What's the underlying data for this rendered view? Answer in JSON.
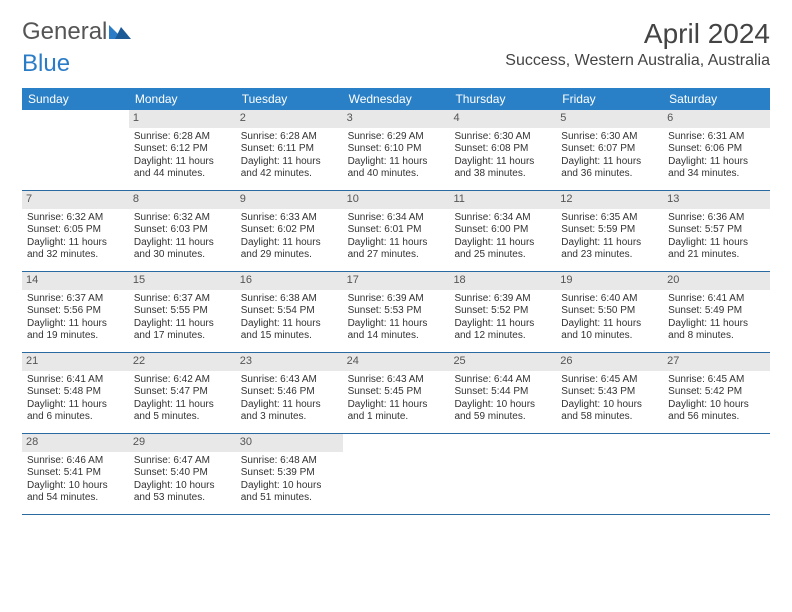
{
  "logo": {
    "text1": "General",
    "text2": "Blue"
  },
  "title": "April 2024",
  "location": "Success, Western Australia, Australia",
  "colors": {
    "header_bg": "#2a80c7",
    "header_text": "#ffffff",
    "daynum_bg": "#e8e8e8",
    "week_border": "#2a6aa0",
    "logo_blue": "#2a7cc7"
  },
  "daysOfWeek": [
    "Sunday",
    "Monday",
    "Tuesday",
    "Wednesday",
    "Thursday",
    "Friday",
    "Saturday"
  ],
  "weeks": [
    [
      {
        "num": "",
        "blank": true
      },
      {
        "num": "1",
        "sunrise": "Sunrise: 6:28 AM",
        "sunset": "Sunset: 6:12 PM",
        "day1": "Daylight: 11 hours",
        "day2": "and 44 minutes."
      },
      {
        "num": "2",
        "sunrise": "Sunrise: 6:28 AM",
        "sunset": "Sunset: 6:11 PM",
        "day1": "Daylight: 11 hours",
        "day2": "and 42 minutes."
      },
      {
        "num": "3",
        "sunrise": "Sunrise: 6:29 AM",
        "sunset": "Sunset: 6:10 PM",
        "day1": "Daylight: 11 hours",
        "day2": "and 40 minutes."
      },
      {
        "num": "4",
        "sunrise": "Sunrise: 6:30 AM",
        "sunset": "Sunset: 6:08 PM",
        "day1": "Daylight: 11 hours",
        "day2": "and 38 minutes."
      },
      {
        "num": "5",
        "sunrise": "Sunrise: 6:30 AM",
        "sunset": "Sunset: 6:07 PM",
        "day1": "Daylight: 11 hours",
        "day2": "and 36 minutes."
      },
      {
        "num": "6",
        "sunrise": "Sunrise: 6:31 AM",
        "sunset": "Sunset: 6:06 PM",
        "day1": "Daylight: 11 hours",
        "day2": "and 34 minutes."
      }
    ],
    [
      {
        "num": "7",
        "sunrise": "Sunrise: 6:32 AM",
        "sunset": "Sunset: 6:05 PM",
        "day1": "Daylight: 11 hours",
        "day2": "and 32 minutes."
      },
      {
        "num": "8",
        "sunrise": "Sunrise: 6:32 AM",
        "sunset": "Sunset: 6:03 PM",
        "day1": "Daylight: 11 hours",
        "day2": "and 30 minutes."
      },
      {
        "num": "9",
        "sunrise": "Sunrise: 6:33 AM",
        "sunset": "Sunset: 6:02 PM",
        "day1": "Daylight: 11 hours",
        "day2": "and 29 minutes."
      },
      {
        "num": "10",
        "sunrise": "Sunrise: 6:34 AM",
        "sunset": "Sunset: 6:01 PM",
        "day1": "Daylight: 11 hours",
        "day2": "and 27 minutes."
      },
      {
        "num": "11",
        "sunrise": "Sunrise: 6:34 AM",
        "sunset": "Sunset: 6:00 PM",
        "day1": "Daylight: 11 hours",
        "day2": "and 25 minutes."
      },
      {
        "num": "12",
        "sunrise": "Sunrise: 6:35 AM",
        "sunset": "Sunset: 5:59 PM",
        "day1": "Daylight: 11 hours",
        "day2": "and 23 minutes."
      },
      {
        "num": "13",
        "sunrise": "Sunrise: 6:36 AM",
        "sunset": "Sunset: 5:57 PM",
        "day1": "Daylight: 11 hours",
        "day2": "and 21 minutes."
      }
    ],
    [
      {
        "num": "14",
        "sunrise": "Sunrise: 6:37 AM",
        "sunset": "Sunset: 5:56 PM",
        "day1": "Daylight: 11 hours",
        "day2": "and 19 minutes."
      },
      {
        "num": "15",
        "sunrise": "Sunrise: 6:37 AM",
        "sunset": "Sunset: 5:55 PM",
        "day1": "Daylight: 11 hours",
        "day2": "and 17 minutes."
      },
      {
        "num": "16",
        "sunrise": "Sunrise: 6:38 AM",
        "sunset": "Sunset: 5:54 PM",
        "day1": "Daylight: 11 hours",
        "day2": "and 15 minutes."
      },
      {
        "num": "17",
        "sunrise": "Sunrise: 6:39 AM",
        "sunset": "Sunset: 5:53 PM",
        "day1": "Daylight: 11 hours",
        "day2": "and 14 minutes."
      },
      {
        "num": "18",
        "sunrise": "Sunrise: 6:39 AM",
        "sunset": "Sunset: 5:52 PM",
        "day1": "Daylight: 11 hours",
        "day2": "and 12 minutes."
      },
      {
        "num": "19",
        "sunrise": "Sunrise: 6:40 AM",
        "sunset": "Sunset: 5:50 PM",
        "day1": "Daylight: 11 hours",
        "day2": "and 10 minutes."
      },
      {
        "num": "20",
        "sunrise": "Sunrise: 6:41 AM",
        "sunset": "Sunset: 5:49 PM",
        "day1": "Daylight: 11 hours",
        "day2": "and 8 minutes."
      }
    ],
    [
      {
        "num": "21",
        "sunrise": "Sunrise: 6:41 AM",
        "sunset": "Sunset: 5:48 PM",
        "day1": "Daylight: 11 hours",
        "day2": "and 6 minutes."
      },
      {
        "num": "22",
        "sunrise": "Sunrise: 6:42 AM",
        "sunset": "Sunset: 5:47 PM",
        "day1": "Daylight: 11 hours",
        "day2": "and 5 minutes."
      },
      {
        "num": "23",
        "sunrise": "Sunrise: 6:43 AM",
        "sunset": "Sunset: 5:46 PM",
        "day1": "Daylight: 11 hours",
        "day2": "and 3 minutes."
      },
      {
        "num": "24",
        "sunrise": "Sunrise: 6:43 AM",
        "sunset": "Sunset: 5:45 PM",
        "day1": "Daylight: 11 hours",
        "day2": "and 1 minute."
      },
      {
        "num": "25",
        "sunrise": "Sunrise: 6:44 AM",
        "sunset": "Sunset: 5:44 PM",
        "day1": "Daylight: 10 hours",
        "day2": "and 59 minutes."
      },
      {
        "num": "26",
        "sunrise": "Sunrise: 6:45 AM",
        "sunset": "Sunset: 5:43 PM",
        "day1": "Daylight: 10 hours",
        "day2": "and 58 minutes."
      },
      {
        "num": "27",
        "sunrise": "Sunrise: 6:45 AM",
        "sunset": "Sunset: 5:42 PM",
        "day1": "Daylight: 10 hours",
        "day2": "and 56 minutes."
      }
    ],
    [
      {
        "num": "28",
        "sunrise": "Sunrise: 6:46 AM",
        "sunset": "Sunset: 5:41 PM",
        "day1": "Daylight: 10 hours",
        "day2": "and 54 minutes."
      },
      {
        "num": "29",
        "sunrise": "Sunrise: 6:47 AM",
        "sunset": "Sunset: 5:40 PM",
        "day1": "Daylight: 10 hours",
        "day2": "and 53 minutes."
      },
      {
        "num": "30",
        "sunrise": "Sunrise: 6:48 AM",
        "sunset": "Sunset: 5:39 PM",
        "day1": "Daylight: 10 hours",
        "day2": "and 51 minutes."
      },
      {
        "num": "",
        "blank": true
      },
      {
        "num": "",
        "blank": true
      },
      {
        "num": "",
        "blank": true
      },
      {
        "num": "",
        "blank": true
      }
    ]
  ]
}
